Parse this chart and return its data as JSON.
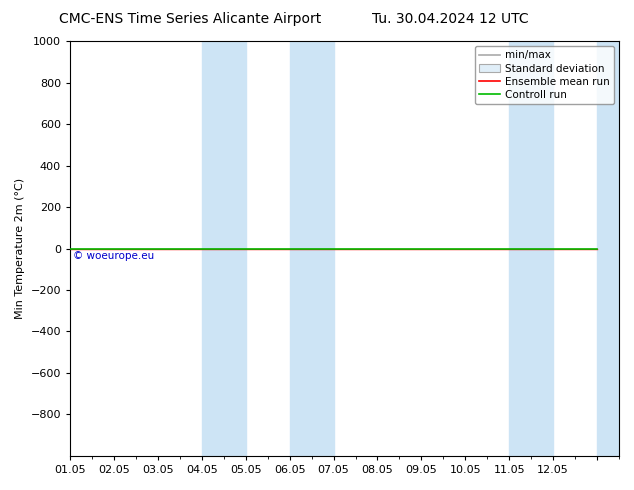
{
  "title_left": "CMC-ENS Time Series Alicante Airport",
  "title_right": "Tu. 30.04.2024 12 UTC",
  "ylabel": "Min Temperature 2m (°C)",
  "ylim_top": -1000,
  "ylim_bottom": 1000,
  "yticks": [
    -800,
    -600,
    -400,
    -200,
    0,
    200,
    400,
    600,
    800,
    1000
  ],
  "xlim": [
    0,
    12
  ],
  "xtick_positions": [
    0,
    1,
    2,
    3,
    4,
    5,
    6,
    7,
    8,
    9,
    10,
    11,
    12
  ],
  "xtick_labels": [
    "01.05",
    "02.05",
    "03.05",
    "04.05",
    "05.05",
    "06.05",
    "07.05",
    "08.05",
    "09.05",
    "10.05",
    "11.05",
    "12.05",
    ""
  ],
  "blue_bands": [
    [
      3.0,
      4.0
    ],
    [
      5.0,
      6.0
    ],
    [
      10.0,
      11.0
    ],
    [
      12.0,
      13.0
    ]
  ],
  "blue_band_color": "#cde4f5",
  "green_line_y": 0,
  "green_line_color": "#00bb00",
  "red_line_y": 0,
  "red_line_color": "#ff0000",
  "watermark_text": "© woeurope.eu",
  "watermark_color": "#0000cc",
  "legend_items": [
    "min/max",
    "Standard deviation",
    "Ensemble mean run",
    "Controll run"
  ],
  "legend_line_colors": [
    "#aaaaaa",
    "#cccccc",
    "#ff0000",
    "#00bb00"
  ],
  "title_fontsize": 10,
  "axis_fontsize": 8,
  "tick_fontsize": 8,
  "legend_fontsize": 7.5
}
